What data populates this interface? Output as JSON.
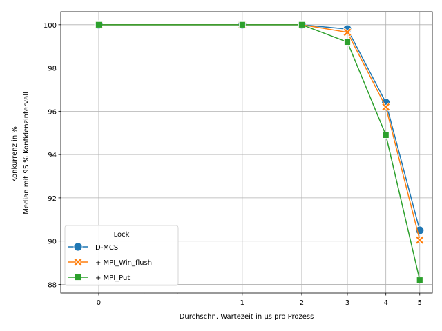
{
  "chart_data": {
    "type": "line",
    "xlabel": "Durchschn. Wartezeit in µs pro Prozess",
    "ylabel_lines": [
      "Konkurrenz in %",
      "Median mit 95 % Konfidenzintervall"
    ],
    "xscale": "sqrt",
    "x_ticks": [
      0,
      1,
      2,
      3,
      4,
      5
    ],
    "x_tick_labels": [
      "0",
      "1",
      "2",
      "3",
      "4",
      "5"
    ],
    "x_minor_ticks": [
      0.1,
      0.3
    ],
    "xlim": [
      -0.07,
      5.4
    ],
    "y_ticks": [
      88,
      90,
      92,
      94,
      96,
      98,
      100
    ],
    "y_tick_labels": [
      "88",
      "90",
      "92",
      "94",
      "96",
      "98",
      "100"
    ],
    "ylim": [
      87.6,
      100.6
    ],
    "grid": true,
    "legend": {
      "title": "Lock",
      "placement": "lower-left"
    },
    "x": [
      0,
      1,
      2,
      3,
      4,
      5
    ],
    "series": [
      {
        "name": "D-MCS",
        "color": "#1f77b4",
        "marker": "circle",
        "values": [
          100,
          100,
          100,
          99.8,
          96.4,
          90.5
        ]
      },
      {
        "name": "+ MPI_Win_flush",
        "color": "#ff7f0e",
        "marker": "x-filled",
        "values": [
          100,
          100,
          100,
          99.65,
          96.2,
          90.05
        ]
      },
      {
        "name": "+ MPI_Put",
        "color": "#2ca02c",
        "marker": "square",
        "values": [
          100,
          100,
          100,
          99.2,
          94.9,
          88.2
        ]
      }
    ]
  }
}
